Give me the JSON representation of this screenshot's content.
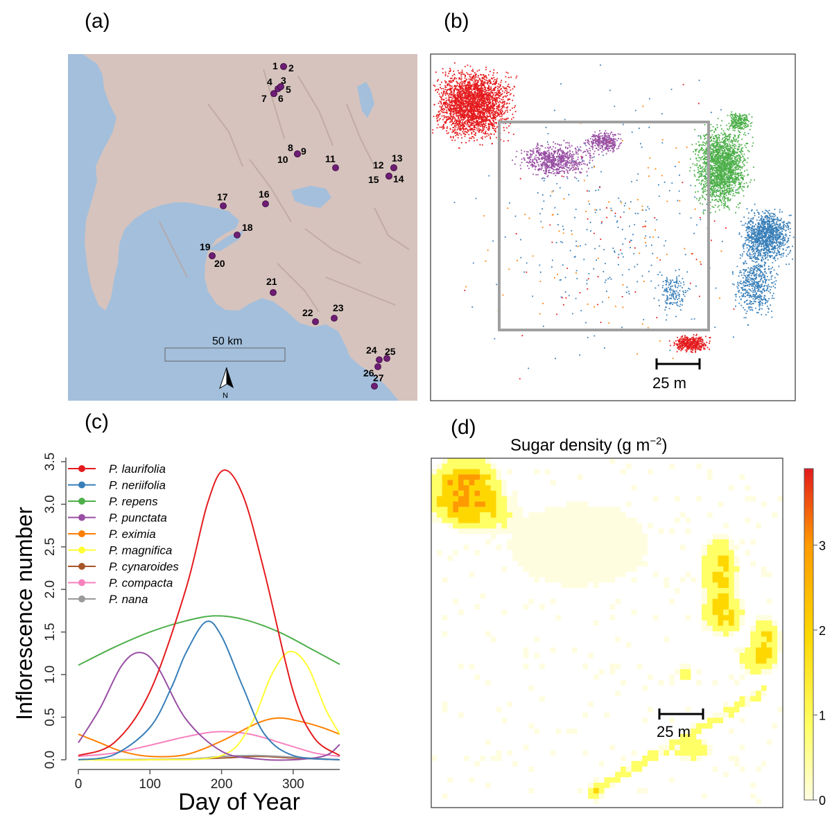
{
  "panel_labels": [
    "(a)",
    "(b)",
    "(c)",
    "(d)"
  ],
  "map": {
    "scale_label": "50 km",
    "north_label": "N",
    "colors": {
      "sea": "#a3bfdc",
      "land": "#d6c3bd",
      "site": "#6e1d75"
    },
    "sites": [
      {
        "id": "1"
      },
      {
        "id": "2"
      },
      {
        "id": "3"
      },
      {
        "id": "4"
      },
      {
        "id": "5"
      },
      {
        "id": "6"
      },
      {
        "id": "7"
      },
      {
        "id": "8"
      },
      {
        "id": "9"
      },
      {
        "id": "10"
      },
      {
        "id": "11"
      },
      {
        "id": "12"
      },
      {
        "id": "13"
      },
      {
        "id": "14"
      },
      {
        "id": "15"
      },
      {
        "id": "16"
      },
      {
        "id": "17"
      },
      {
        "id": "18"
      },
      {
        "id": "19"
      },
      {
        "id": "20"
      },
      {
        "id": "21"
      },
      {
        "id": "22"
      },
      {
        "id": "23"
      },
      {
        "id": "24"
      },
      {
        "id": "25"
      },
      {
        "id": "26"
      },
      {
        "id": "27"
      }
    ]
  },
  "plot_map": {
    "scale_label": "25 m",
    "colors": {
      "laurifolia": "#e41a1c",
      "neriifolia": "#377eb8",
      "repens": "#4daf4a",
      "punctata": "#984ea3",
      "eximia": "#ff7f00",
      "frame": "#a0a0a0"
    }
  },
  "chart_data": {
    "type": "line",
    "xlabel": "Day of Year",
    "ylabel": "Inflorescence number",
    "xlim": [
      0,
      365
    ],
    "ylim": [
      0,
      3.5
    ],
    "xticks": [
      0,
      100,
      200,
      300
    ],
    "yticks": [
      "0.0",
      "0.5",
      "1.0",
      "1.5",
      "2.0",
      "2.5",
      "3.0",
      "3.5"
    ],
    "grid": false,
    "legend_position": "top-left",
    "series": [
      {
        "name": "P. laurifolia",
        "color": "#e41a1c",
        "x": [
          0,
          50,
          100,
          150,
          180,
          203,
          230,
          260,
          300,
          330,
          365
        ],
        "values": [
          0.05,
          0.2,
          0.8,
          2.0,
          3.0,
          3.4,
          3.1,
          2.2,
          0.8,
          0.25,
          0.05
        ]
      },
      {
        "name": "P. neriifolia",
        "color": "#377eb8",
        "x": [
          0,
          50,
          100,
          130,
          150,
          178,
          200,
          230,
          260,
          300,
          365
        ],
        "values": [
          0.0,
          0.06,
          0.38,
          0.85,
          1.25,
          1.62,
          1.45,
          0.85,
          0.3,
          0.05,
          0.0
        ]
      },
      {
        "name": "P. repens",
        "color": "#4daf4a",
        "x": [
          0,
          50,
          100,
          150,
          190,
          230,
          280,
          330,
          365
        ],
        "values": [
          1.11,
          1.32,
          1.5,
          1.63,
          1.69,
          1.65,
          1.5,
          1.28,
          1.12
        ]
      },
      {
        "name": "P. punctata",
        "color": "#984ea3",
        "x": [
          0,
          30,
          60,
          85,
          110,
          150,
          200,
          250,
          300,
          345,
          365
        ],
        "values": [
          0.2,
          0.6,
          1.1,
          1.26,
          1.1,
          0.48,
          0.1,
          0.01,
          0.0,
          0.05,
          0.18
        ]
      },
      {
        "name": "P. eximia",
        "color": "#ff7f00",
        "x": [
          0,
          30,
          60,
          100,
          150,
          200,
          250,
          280,
          310,
          340,
          365
        ],
        "values": [
          0.3,
          0.2,
          0.1,
          0.04,
          0.06,
          0.22,
          0.43,
          0.49,
          0.45,
          0.38,
          0.3
        ]
      },
      {
        "name": "P. magnifica",
        "color": "#ffff33",
        "x": [
          0,
          100,
          200,
          240,
          270,
          295,
          320,
          345,
          365
        ],
        "values": [
          0.0,
          0.0,
          0.05,
          0.4,
          1.0,
          1.27,
          1.1,
          0.6,
          0.3
        ]
      },
      {
        "name": "P. cynaroides",
        "color": "#a65628",
        "x": [
          0,
          100,
          200,
          250,
          300,
          365
        ],
        "values": [
          0.0,
          0.0,
          0.02,
          0.04,
          0.02,
          0.0
        ]
      },
      {
        "name": "P. compacta",
        "color": "#f781bf",
        "x": [
          0,
          50,
          100,
          150,
          195,
          240,
          290,
          330,
          365
        ],
        "values": [
          0.04,
          0.08,
          0.17,
          0.27,
          0.33,
          0.3,
          0.18,
          0.08,
          0.04
        ]
      },
      {
        "name": "P. nana",
        "color": "#999999",
        "x": [
          0,
          150,
          200,
          250,
          300,
          365
        ],
        "values": [
          0.0,
          0.01,
          0.04,
          0.05,
          0.03,
          0.0
        ]
      }
    ]
  },
  "heatmap": {
    "title_main": "Sugar density (g m",
    "title_sup": "−2",
    "title_close": ")",
    "scale_label": "25 m",
    "colorbar_ticks": [
      "0",
      "1",
      "2",
      "3"
    ],
    "colorbar_range": [
      0,
      3.9
    ],
    "colors": [
      "#fffde0",
      "#ffff66",
      "#ffd700",
      "#ff9a00",
      "#e31a1c"
    ]
  }
}
